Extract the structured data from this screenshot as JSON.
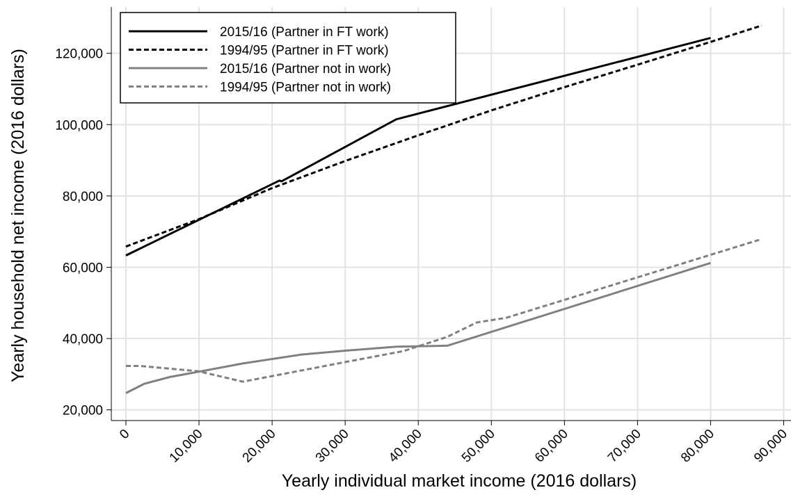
{
  "chart_data": {
    "type": "line",
    "xlabel": "Yearly individual market income (2016 dollars)",
    "ylabel": "Yearly household net income (2016 dollars)",
    "xlim": [
      -2000,
      91000
    ],
    "ylim": [
      17000,
      133000
    ],
    "xticks": [
      0,
      {
        "value": 10000,
        "label": "10,000"
      },
      {
        "value": 20000,
        "label": "20,000"
      },
      {
        "value": 30000,
        "label": "30,000"
      },
      {
        "value": 40000,
        "label": "40,000"
      },
      {
        "value": 50000,
        "label": "50,000"
      },
      {
        "value": 60000,
        "label": "60,000"
      },
      {
        "value": 70000,
        "label": "70,000"
      },
      {
        "value": 80000,
        "label": "80,000"
      },
      {
        "value": 90000,
        "label": "90,000"
      }
    ],
    "yticks": [
      {
        "value": 20000,
        "label": "20,000"
      },
      {
        "value": 40000,
        "label": "40,000"
      },
      {
        "value": 60000,
        "label": "60,000"
      },
      {
        "value": 80000,
        "label": "80,000"
      },
      {
        "value": 100000,
        "label": "100,000"
      },
      {
        "value": 120000,
        "label": "120,000"
      }
    ],
    "grid": true,
    "legend": "upper left",
    "series": [
      {
        "name": "2015/16 (Partner in FT work)",
        "color": "#000000",
        "dash": "solid",
        "x": [
          0,
          10000,
          21000,
          21300,
          37000,
          80000
        ],
        "values": [
          63300,
          73300,
          84300,
          84100,
          101500,
          124300
        ]
      },
      {
        "name": "1994/95 (Partner in FT work)",
        "color": "#000000",
        "dash": "dashed",
        "x": [
          0,
          10000,
          20000,
          30000,
          40000,
          50000,
          60000,
          70000,
          80000,
          87000
        ],
        "values": [
          65800,
          73500,
          82200,
          89800,
          97000,
          104000,
          110500,
          116800,
          123200,
          127800
        ]
      },
      {
        "name": "2015/16 (Partner not in work)",
        "color": "#808080",
        "dash": "solid",
        "x": [
          0,
          2500,
          6000,
          10000,
          16000,
          24000,
          30000,
          37000,
          44000,
          80000
        ],
        "values": [
          24700,
          27300,
          29200,
          30700,
          33000,
          35500,
          36600,
          37700,
          38000,
          61200
        ]
      },
      {
        "name": "1994/95 (Partner not in work)",
        "color": "#808080",
        "dash": "dashed",
        "x": [
          0,
          2000,
          10000,
          16000,
          30000,
          38000,
          44000,
          48000,
          52000,
          87000
        ],
        "values": [
          32300,
          32300,
          30800,
          27900,
          33400,
          36500,
          40500,
          44500,
          45800,
          67900
        ]
      }
    ]
  }
}
